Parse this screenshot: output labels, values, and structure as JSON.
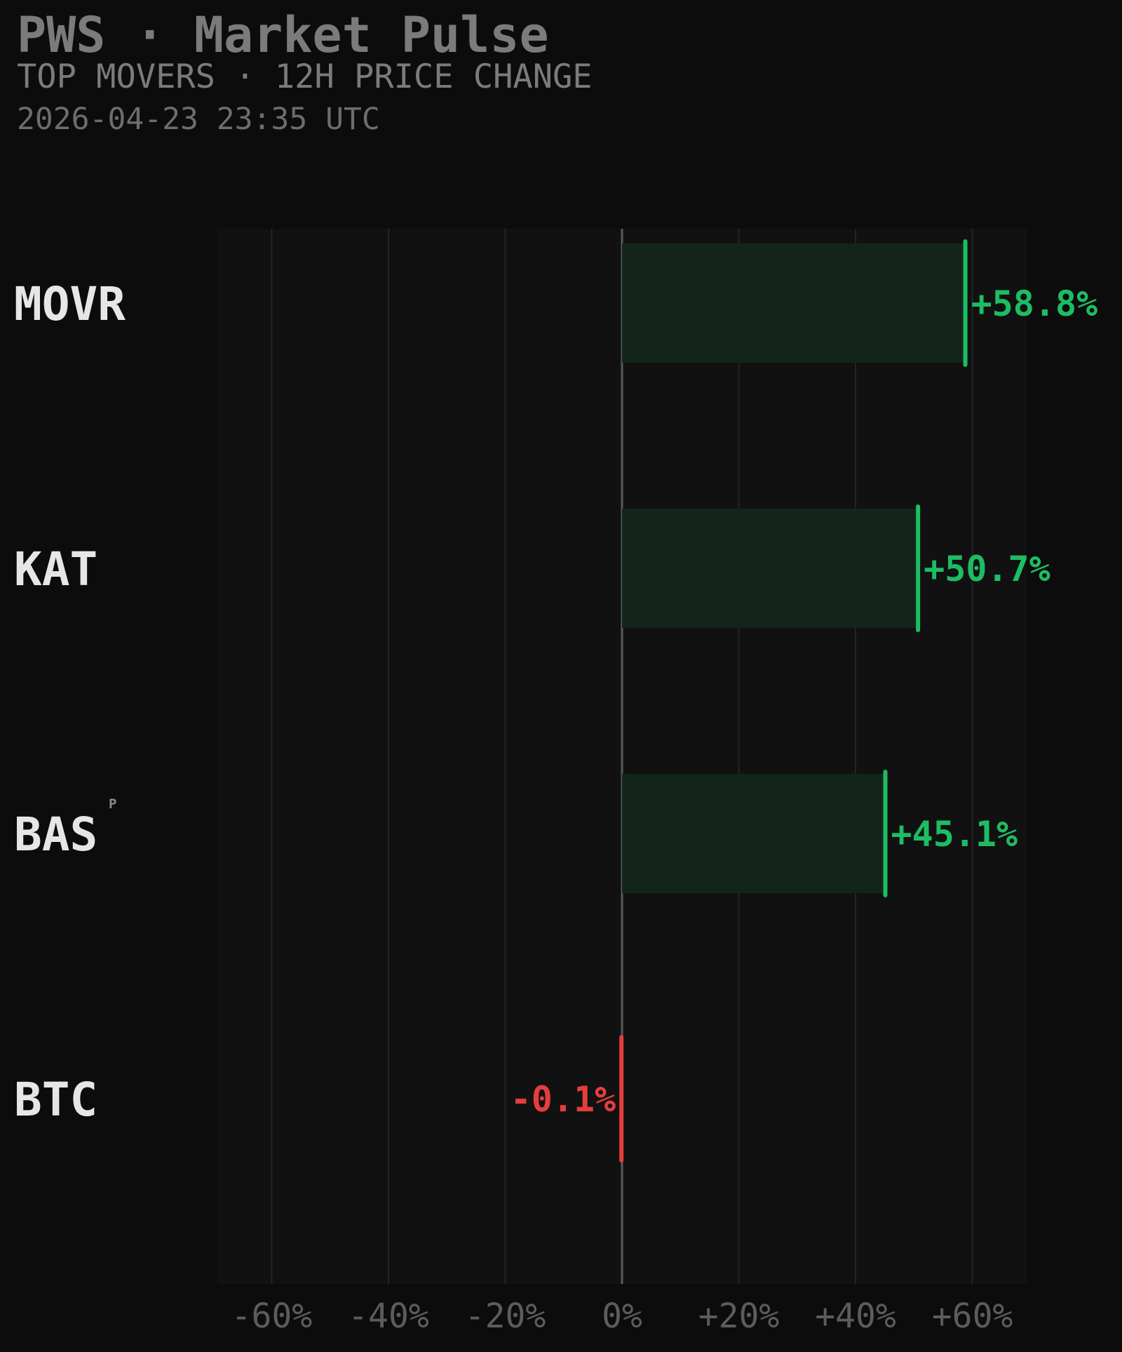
{
  "header": {
    "title": "PWS · Market Pulse",
    "subtitle": "TOP MOVERS · 12H PRICE CHANGE",
    "timestamp": "2026-04-23 23:35 UTC"
  },
  "colors": {
    "background": "#0c0c0c",
    "plot_background": "#111111",
    "positive": "#1dbd63",
    "positive_fill": "#13251b",
    "negative": "#e53d3d",
    "grid": "#252525",
    "zero_line": "#5a5a5a"
  },
  "chart_data": {
    "type": "bar",
    "orientation": "horizontal",
    "categories": [
      "MOVR",
      "KAT",
      "BAS",
      "BTC"
    ],
    "category_superscripts": [
      "",
      "",
      "P",
      ""
    ],
    "values": [
      58.8,
      50.7,
      45.1,
      -0.1
    ],
    "value_labels": [
      "+58.8%",
      "+50.7%",
      "+45.1%",
      "-0.1%"
    ],
    "x_ticks": [
      -60,
      -40,
      -20,
      0,
      20,
      40,
      60
    ],
    "x_tick_labels": [
      "-60%",
      "-40%",
      "-20%",
      "0%",
      "+20%",
      "+40%",
      "+60%"
    ],
    "xlim": [
      -69.3,
      69.3
    ],
    "grid": true,
    "legend": "none"
  }
}
